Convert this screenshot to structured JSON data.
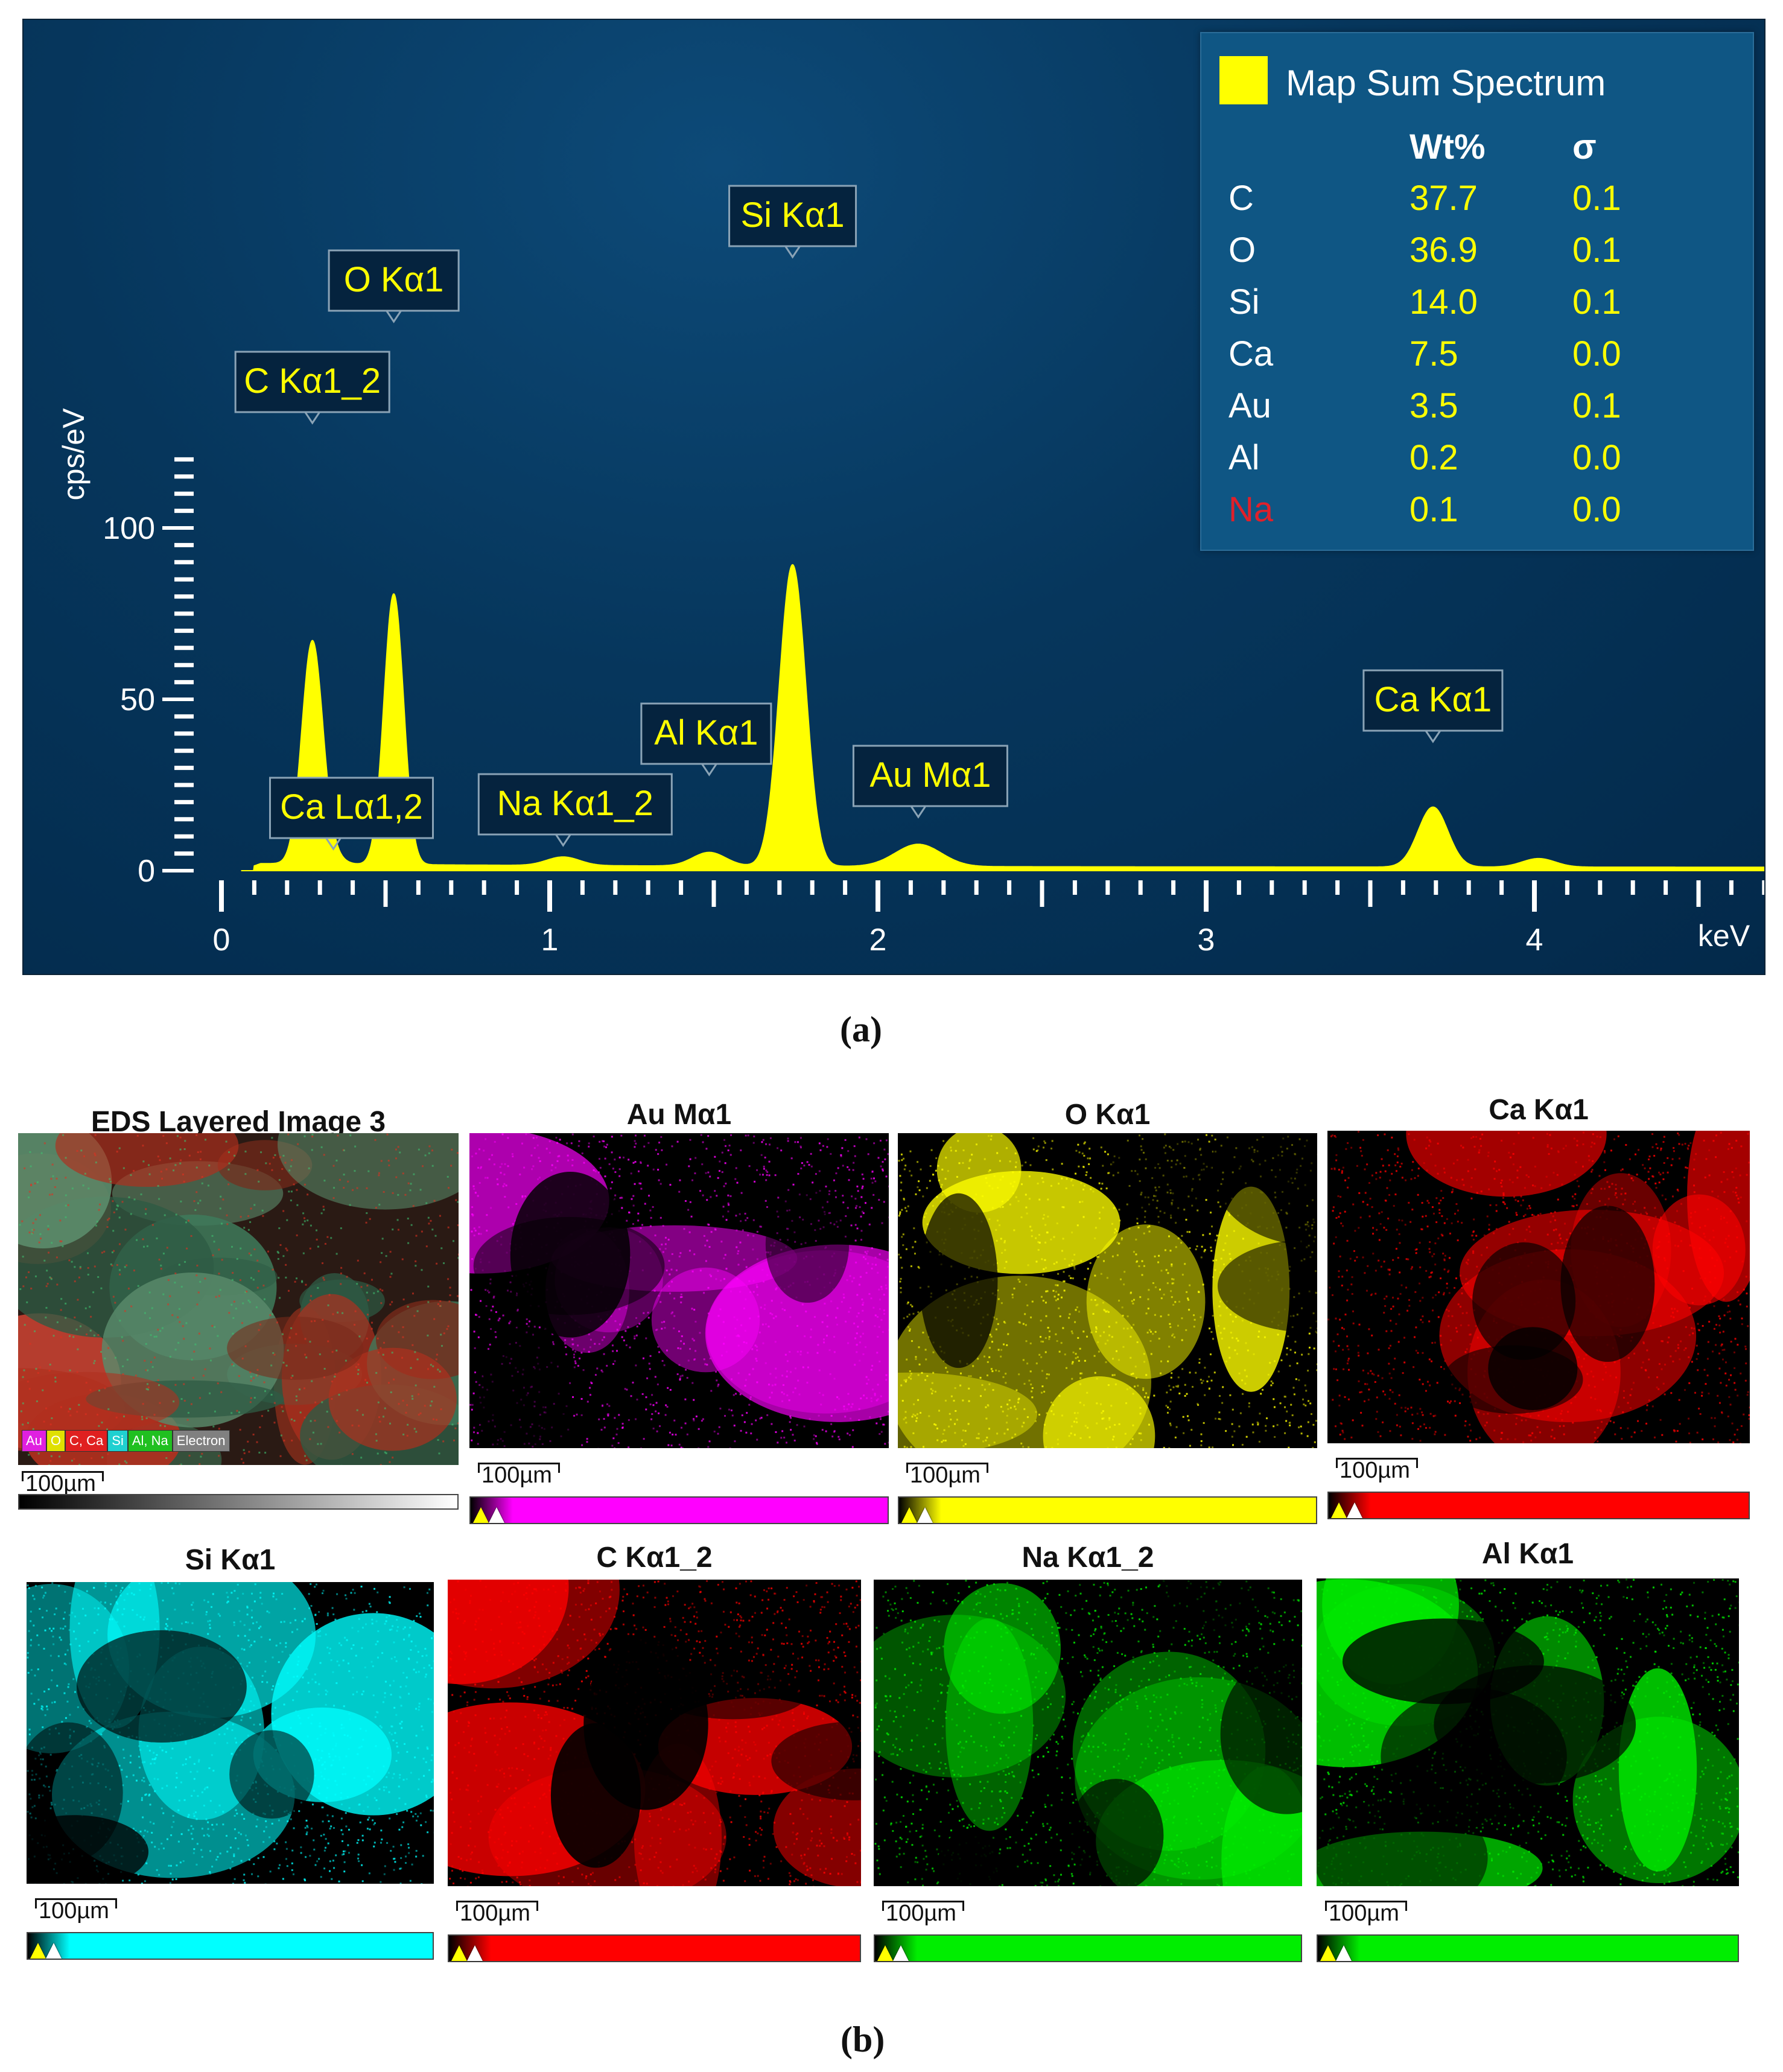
{
  "chart_data": {
    "type": "area",
    "title": "",
    "xlabel": "keV",
    "ylabel": "cps/eV",
    "xlim": [
      0,
      4.7
    ],
    "ylim": [
      0,
      120
    ],
    "x_ticks": [
      "0",
      "1",
      "2",
      "3",
      "4"
    ],
    "y_ticks": [
      "0",
      "50",
      "100"
    ],
    "grid": false,
    "series_color": "#ffff00",
    "peaks": [
      {
        "label": "C Kα1_2",
        "x": 0.277,
        "y": 65
      },
      {
        "label": "O Kα1",
        "x": 0.525,
        "y": 79
      },
      {
        "label": "Ca Lα1,2",
        "x": 0.341,
        "y": 2
      },
      {
        "label": "Na Kα1_2",
        "x": 1.041,
        "y": 2.5
      },
      {
        "label": "Al Kα1",
        "x": 1.486,
        "y": 4
      },
      {
        "label": "Si Kα1",
        "x": 1.74,
        "y": 88
      },
      {
        "label": "Au Mα1",
        "x": 2.123,
        "y": 6.5
      },
      {
        "label": "Ca Kα1",
        "x": 3.691,
        "y": 17.5
      }
    ],
    "legend": {
      "series_name": "Map Sum Spectrum",
      "placement": "top-right",
      "columns": [
        "Wt%",
        "σ"
      ],
      "rows": [
        {
          "element": "C",
          "wt": "37.7",
          "sigma": "0.1"
        },
        {
          "element": "O",
          "wt": "36.9",
          "sigma": "0.1"
        },
        {
          "element": "Si",
          "wt": "14.0",
          "sigma": "0.1"
        },
        {
          "element": "Ca",
          "wt": "7.5",
          "sigma": "0.0"
        },
        {
          "element": "Au",
          "wt": "3.5",
          "sigma": "0.1"
        },
        {
          "element": "Al",
          "wt": "0.2",
          "sigma": "0.0"
        },
        {
          "element": "Na",
          "wt": "0.1",
          "sigma": "0.0",
          "color": "#e0202a"
        }
      ]
    }
  },
  "captions": {
    "a": "(a)",
    "b": "(b)"
  },
  "maps": {
    "layered": {
      "title": "EDS Layered Image 3",
      "scale": "100µm",
      "legend_chips": [
        {
          "label": "Au",
          "color": "#e020e0"
        },
        {
          "label": "O",
          "color": "#e0e000"
        },
        {
          "label": "C, Ca",
          "color": "#e02020"
        },
        {
          "label": "Si",
          "color": "#20d0d0"
        },
        {
          "label": "Al, Na",
          "color": "#20c020"
        },
        {
          "label": "Electron",
          "color": "#808080"
        }
      ]
    },
    "tiles": [
      {
        "title": "Au Mα1",
        "color": "#ff00ff",
        "scale": "100µm"
      },
      {
        "title": "O Kα1",
        "color": "#ffff00",
        "scale": "100µm"
      },
      {
        "title": "Ca Kα1",
        "color": "#ff0000",
        "scale": "100µm"
      },
      {
        "title": "Si Kα1",
        "color": "#00ffff",
        "scale": "100µm"
      },
      {
        "title": "C Kα1_2",
        "color": "#ff0000",
        "scale": "100µm"
      },
      {
        "title": "Na Kα1_2",
        "color": "#00ee00",
        "scale": "100µm"
      },
      {
        "title": "Al Kα1",
        "color": "#00ee00",
        "scale": "100µm"
      }
    ]
  }
}
